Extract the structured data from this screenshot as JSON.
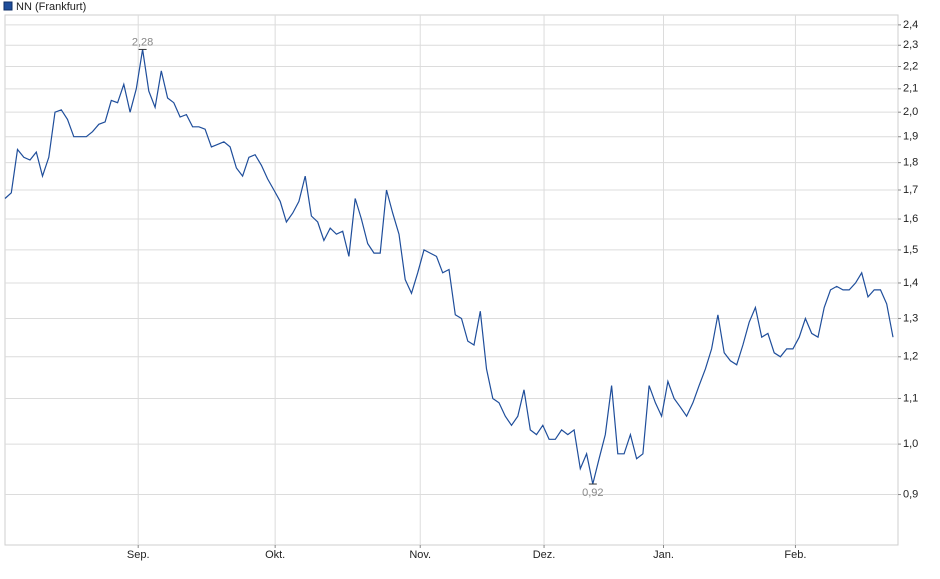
{
  "chart_data": {
    "type": "line",
    "legend": "NN (Frankfurt)",
    "color": "#1f4e9b",
    "log_scale": true,
    "grid": true,
    "values": [
      1.67,
      1.69,
      1.85,
      1.82,
      1.81,
      1.84,
      1.75,
      1.82,
      2.0,
      2.01,
      1.97,
      1.9,
      1.9,
      1.9,
      1.92,
      1.95,
      1.96,
      2.05,
      2.04,
      2.12,
      2.0,
      2.1,
      2.28,
      2.09,
      2.02,
      2.18,
      2.06,
      2.04,
      1.98,
      1.99,
      1.94,
      1.94,
      1.93,
      1.86,
      1.87,
      1.88,
      1.86,
      1.78,
      1.75,
      1.82,
      1.83,
      1.79,
      1.74,
      1.7,
      1.66,
      1.59,
      1.62,
      1.66,
      1.75,
      1.61,
      1.59,
      1.53,
      1.57,
      1.55,
      1.56,
      1.48,
      1.67,
      1.6,
      1.52,
      1.49,
      1.49,
      1.7,
      1.62,
      1.55,
      1.41,
      1.37,
      1.43,
      1.5,
      1.49,
      1.48,
      1.43,
      1.44,
      1.31,
      1.3,
      1.24,
      1.23,
      1.32,
      1.17,
      1.1,
      1.09,
      1.06,
      1.04,
      1.06,
      1.12,
      1.03,
      1.02,
      1.04,
      1.01,
      1.01,
      1.03,
      1.02,
      1.03,
      0.95,
      0.98,
      0.92,
      0.97,
      1.02,
      1.13,
      0.98,
      0.98,
      1.02,
      0.97,
      0.98,
      1.13,
      1.09,
      1.06,
      1.14,
      1.1,
      1.08,
      1.06,
      1.09,
      1.13,
      1.17,
      1.22,
      1.31,
      1.21,
      1.19,
      1.18,
      1.23,
      1.29,
      1.33,
      1.25,
      1.26,
      1.21,
      1.2,
      1.22,
      1.22,
      1.25,
      1.3,
      1.26,
      1.25,
      1.33,
      1.38,
      1.39,
      1.38,
      1.38,
      1.4,
      1.43,
      1.36,
      1.38,
      1.38,
      1.34,
      1.25
    ],
    "annotations": [
      {
        "value": 2.28,
        "label": "2,28"
      },
      {
        "value": 0.92,
        "label": "0,92"
      }
    ],
    "xlim": [
      0,
      142.8
    ],
    "xticks": [
      {
        "value": 21.3,
        "label": "Sep."
      },
      {
        "value": 43.2,
        "label": "Okt."
      },
      {
        "value": 66.4,
        "label": "Nov."
      },
      {
        "value": 86.2,
        "label": "Dez."
      },
      {
        "value": 105.3,
        "label": "Jan."
      },
      {
        "value": 126.4,
        "label": "Feb."
      }
    ],
    "ylim": [
      0.81,
      2.45
    ],
    "yticks": [
      {
        "value": 0.9,
        "label": "0,9"
      },
      {
        "value": 1.0,
        "label": "1,0"
      },
      {
        "value": 1.1,
        "label": "1,1"
      },
      {
        "value": 1.2,
        "label": "1,2"
      },
      {
        "value": 1.3,
        "label": "1,3"
      },
      {
        "value": 1.4,
        "label": "1,4"
      },
      {
        "value": 1.5,
        "label": "1,5"
      },
      {
        "value": 1.6,
        "label": "1,6"
      },
      {
        "value": 1.7,
        "label": "1,7"
      },
      {
        "value": 1.8,
        "label": "1,8"
      },
      {
        "value": 1.9,
        "label": "1,9"
      },
      {
        "value": 2.0,
        "label": "2,0"
      },
      {
        "value": 2.1,
        "label": "2,1"
      },
      {
        "value": 2.2,
        "label": "2,2"
      },
      {
        "value": 2.3,
        "label": "2,3"
      },
      {
        "value": 2.4,
        "label": "2,4"
      }
    ]
  }
}
